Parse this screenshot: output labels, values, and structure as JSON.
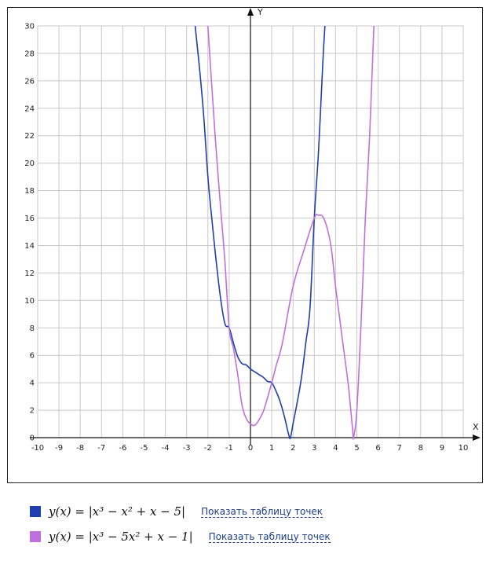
{
  "chart_data": {
    "type": "line",
    "xlabel": "X",
    "ylabel": "Y",
    "xlim": [
      -10,
      10
    ],
    "ylim": [
      0,
      30
    ],
    "x_ticks": [
      -10,
      -9,
      -8,
      -7,
      -6,
      -5,
      -4,
      -3,
      -2,
      -1,
      0,
      1,
      2,
      3,
      4,
      5,
      6,
      7,
      8,
      9,
      10
    ],
    "y_ticks": [
      0,
      2,
      4,
      6,
      8,
      10,
      12,
      14,
      16,
      18,
      20,
      22,
      24,
      26,
      28,
      30
    ],
    "grid": true,
    "series": [
      {
        "name": "y(x) = |x³ − x² + x − 5|",
        "color": "#1f3faf",
        "x": [
          -2.6,
          -2.4,
          -2.2,
          -2.0,
          -1.8,
          -1.6,
          -1.4,
          -1.2,
          -1.0,
          -0.8,
          -0.6,
          -0.4,
          -0.2,
          0.0,
          0.2,
          0.4,
          0.6,
          0.8,
          1.0,
          1.2,
          1.4,
          1.6,
          1.8,
          1.88,
          2.0,
          2.2,
          2.4,
          2.6,
          2.8,
          3.0,
          3.2,
          3.4,
          3.5
        ],
        "y": [
          30.0,
          27.0,
          23.5,
          19.0,
          15.7,
          12.7,
          10.1,
          8.3,
          8.0,
          6.9,
          5.9,
          5.4,
          5.3,
          5.0,
          4.8,
          4.6,
          4.4,
          4.1,
          4.0,
          3.4,
          2.6,
          1.5,
          0.2,
          0.0,
          1.0,
          2.6,
          4.4,
          6.9,
          9.5,
          16.0,
          20.9,
          27.3,
          30.0
        ]
      },
      {
        "name": "y(x) = |x³ − 5x² + x − 1|",
        "color": "#c070dd",
        "x": [
          -2.0,
          -1.8,
          -1.6,
          -1.4,
          -1.2,
          -1.0,
          -0.8,
          -0.6,
          -0.4,
          -0.2,
          0.0,
          0.2,
          0.4,
          0.6,
          0.8,
          1.0,
          1.2,
          1.5,
          2.0,
          2.5,
          3.0,
          3.2,
          3.4,
          3.6,
          3.8,
          4.0,
          4.2,
          4.4,
          4.6,
          4.8,
          4.84,
          5.0,
          5.2,
          5.4,
          5.6,
          5.8
        ],
        "y": [
          30.0,
          25.2,
          20.7,
          16.7,
          12.8,
          8.0,
          6.5,
          4.6,
          2.4,
          1.4,
          1.0,
          0.9,
          1.3,
          1.9,
          2.9,
          4.0,
          5.2,
          6.9,
          11.0,
          13.6,
          16.0,
          16.2,
          16.1,
          15.3,
          13.8,
          11.0,
          8.6,
          6.2,
          3.8,
          0.6,
          0.0,
          2.0,
          8.4,
          16.0,
          22.0,
          30.0
        ]
      }
    ]
  },
  "legend": {
    "items": [
      {
        "formula": "y(x) = |x³ − x² + x − 5|",
        "link": "Показать таблицу точек",
        "color": "#1f3faf"
      },
      {
        "formula": "y(x) = |x³ − 5x² + x − 1|",
        "link": "Показать таблицу точек",
        "color": "#c070dd"
      }
    ]
  }
}
